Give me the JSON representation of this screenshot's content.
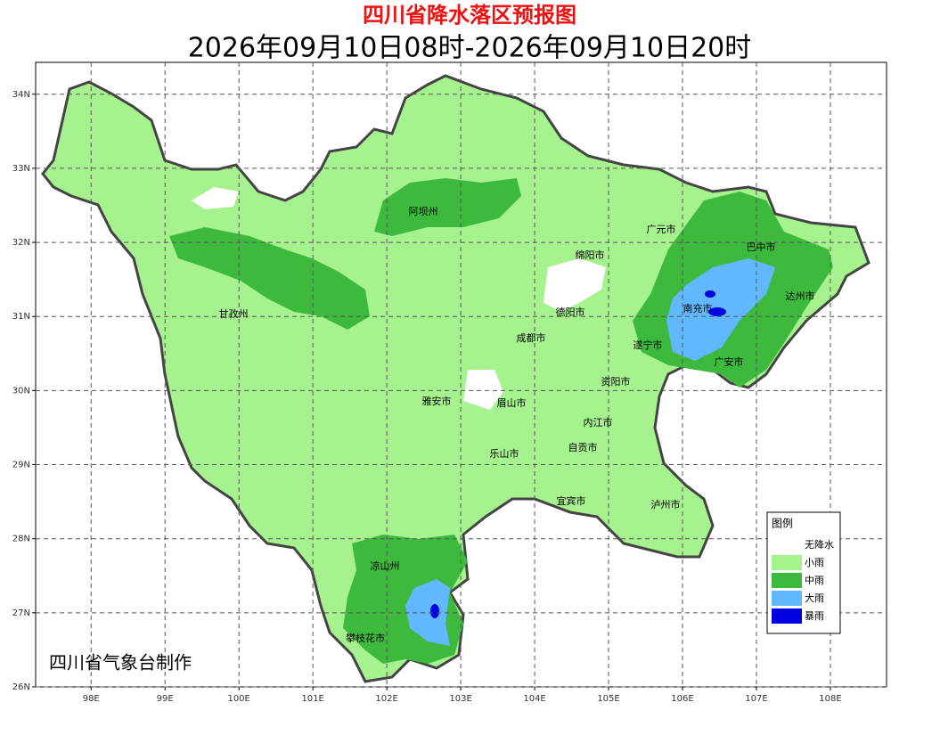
{
  "header": {
    "title": "四川省降水落区预报图",
    "subtitle": "2026年09月10日08时-2026年09月10日20时"
  },
  "map": {
    "xlim": [
      97.25,
      108.76
    ],
    "ylim": [
      26,
      34.43
    ],
    "xticks": [
      {
        "value": 98,
        "label": "98E"
      },
      {
        "value": 99,
        "label": "99E"
      },
      {
        "value": 100,
        "label": "100E"
      },
      {
        "value": 101,
        "label": "101E"
      },
      {
        "value": 102,
        "label": "102E"
      },
      {
        "value": 103,
        "label": "103E"
      },
      {
        "value": 104,
        "label": "104E"
      },
      {
        "value": 105,
        "label": "105E"
      },
      {
        "value": 106,
        "label": "106E"
      },
      {
        "value": 107,
        "label": "107E"
      },
      {
        "value": 108,
        "label": "108E"
      }
    ],
    "yticks": [
      {
        "value": 26,
        "label": "26N"
      },
      {
        "value": 27,
        "label": "27N"
      },
      {
        "value": 28,
        "label": "28N"
      },
      {
        "value": 29,
        "label": "29N"
      },
      {
        "value": 30,
        "label": "30N"
      },
      {
        "value": 31,
        "label": "31N"
      },
      {
        "value": 32,
        "label": "32N"
      },
      {
        "value": 33,
        "label": "33N"
      },
      {
        "value": 34,
        "label": "34N"
      }
    ],
    "grid": true,
    "cities": [
      "阿坝州",
      "广元市",
      "巴中市",
      "绵阳市",
      "达州市",
      "甘孜州",
      "德阳市",
      "南充市",
      "成都市",
      "遂宁市",
      "广安市",
      "资阳市",
      "雅安市",
      "眉山市",
      "内江市",
      "自贡市",
      "乐山市",
      "宜宾市",
      "泸州市",
      "凉山州",
      "攀枝花市"
    ]
  },
  "legend": {
    "title": "图例",
    "items": [
      {
        "label": "无降水",
        "color": "#ffffff"
      },
      {
        "label": "小雨",
        "color": "#a6f28f"
      },
      {
        "label": "中雨",
        "color": "#3dba3d"
      },
      {
        "label": "大雨",
        "color": "#61b8ff"
      },
      {
        "label": "暴雨",
        "color": "#0000e1"
      }
    ]
  },
  "footer": "四川省气象台制作"
}
